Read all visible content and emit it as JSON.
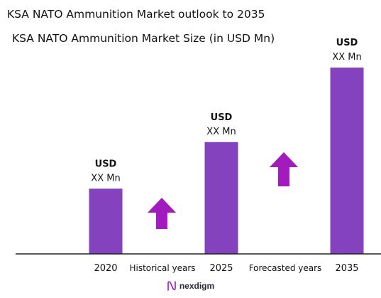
{
  "title": "KSA NATO Ammunition Market outlook to 2035",
  "brand": "nexdigm",
  "chart_data": {
    "type": "bar",
    "title": "KSA NATO Ammunition Market Size (in USD Mn)",
    "categories": [
      "2020",
      "2025",
      "2035"
    ],
    "values": [
      0.35,
      0.6,
      1.0
    ],
    "value_labels": [
      {
        "line1": "USD",
        "line2": "XX Mn"
      },
      {
        "line1": "USD",
        "line2": "XX Mn"
      },
      {
        "line1": "USD",
        "line2": "XX Mn"
      }
    ],
    "period_labels": [
      "Historical years",
      "Forecasted years"
    ],
    "xlabel": "",
    "ylabel": "",
    "ylim": [
      0,
      1
    ],
    "grid": false,
    "legend": "none"
  },
  "colors": {
    "bar": "#8442be",
    "arrow": "#a21bbd",
    "axis": "#222222"
  }
}
